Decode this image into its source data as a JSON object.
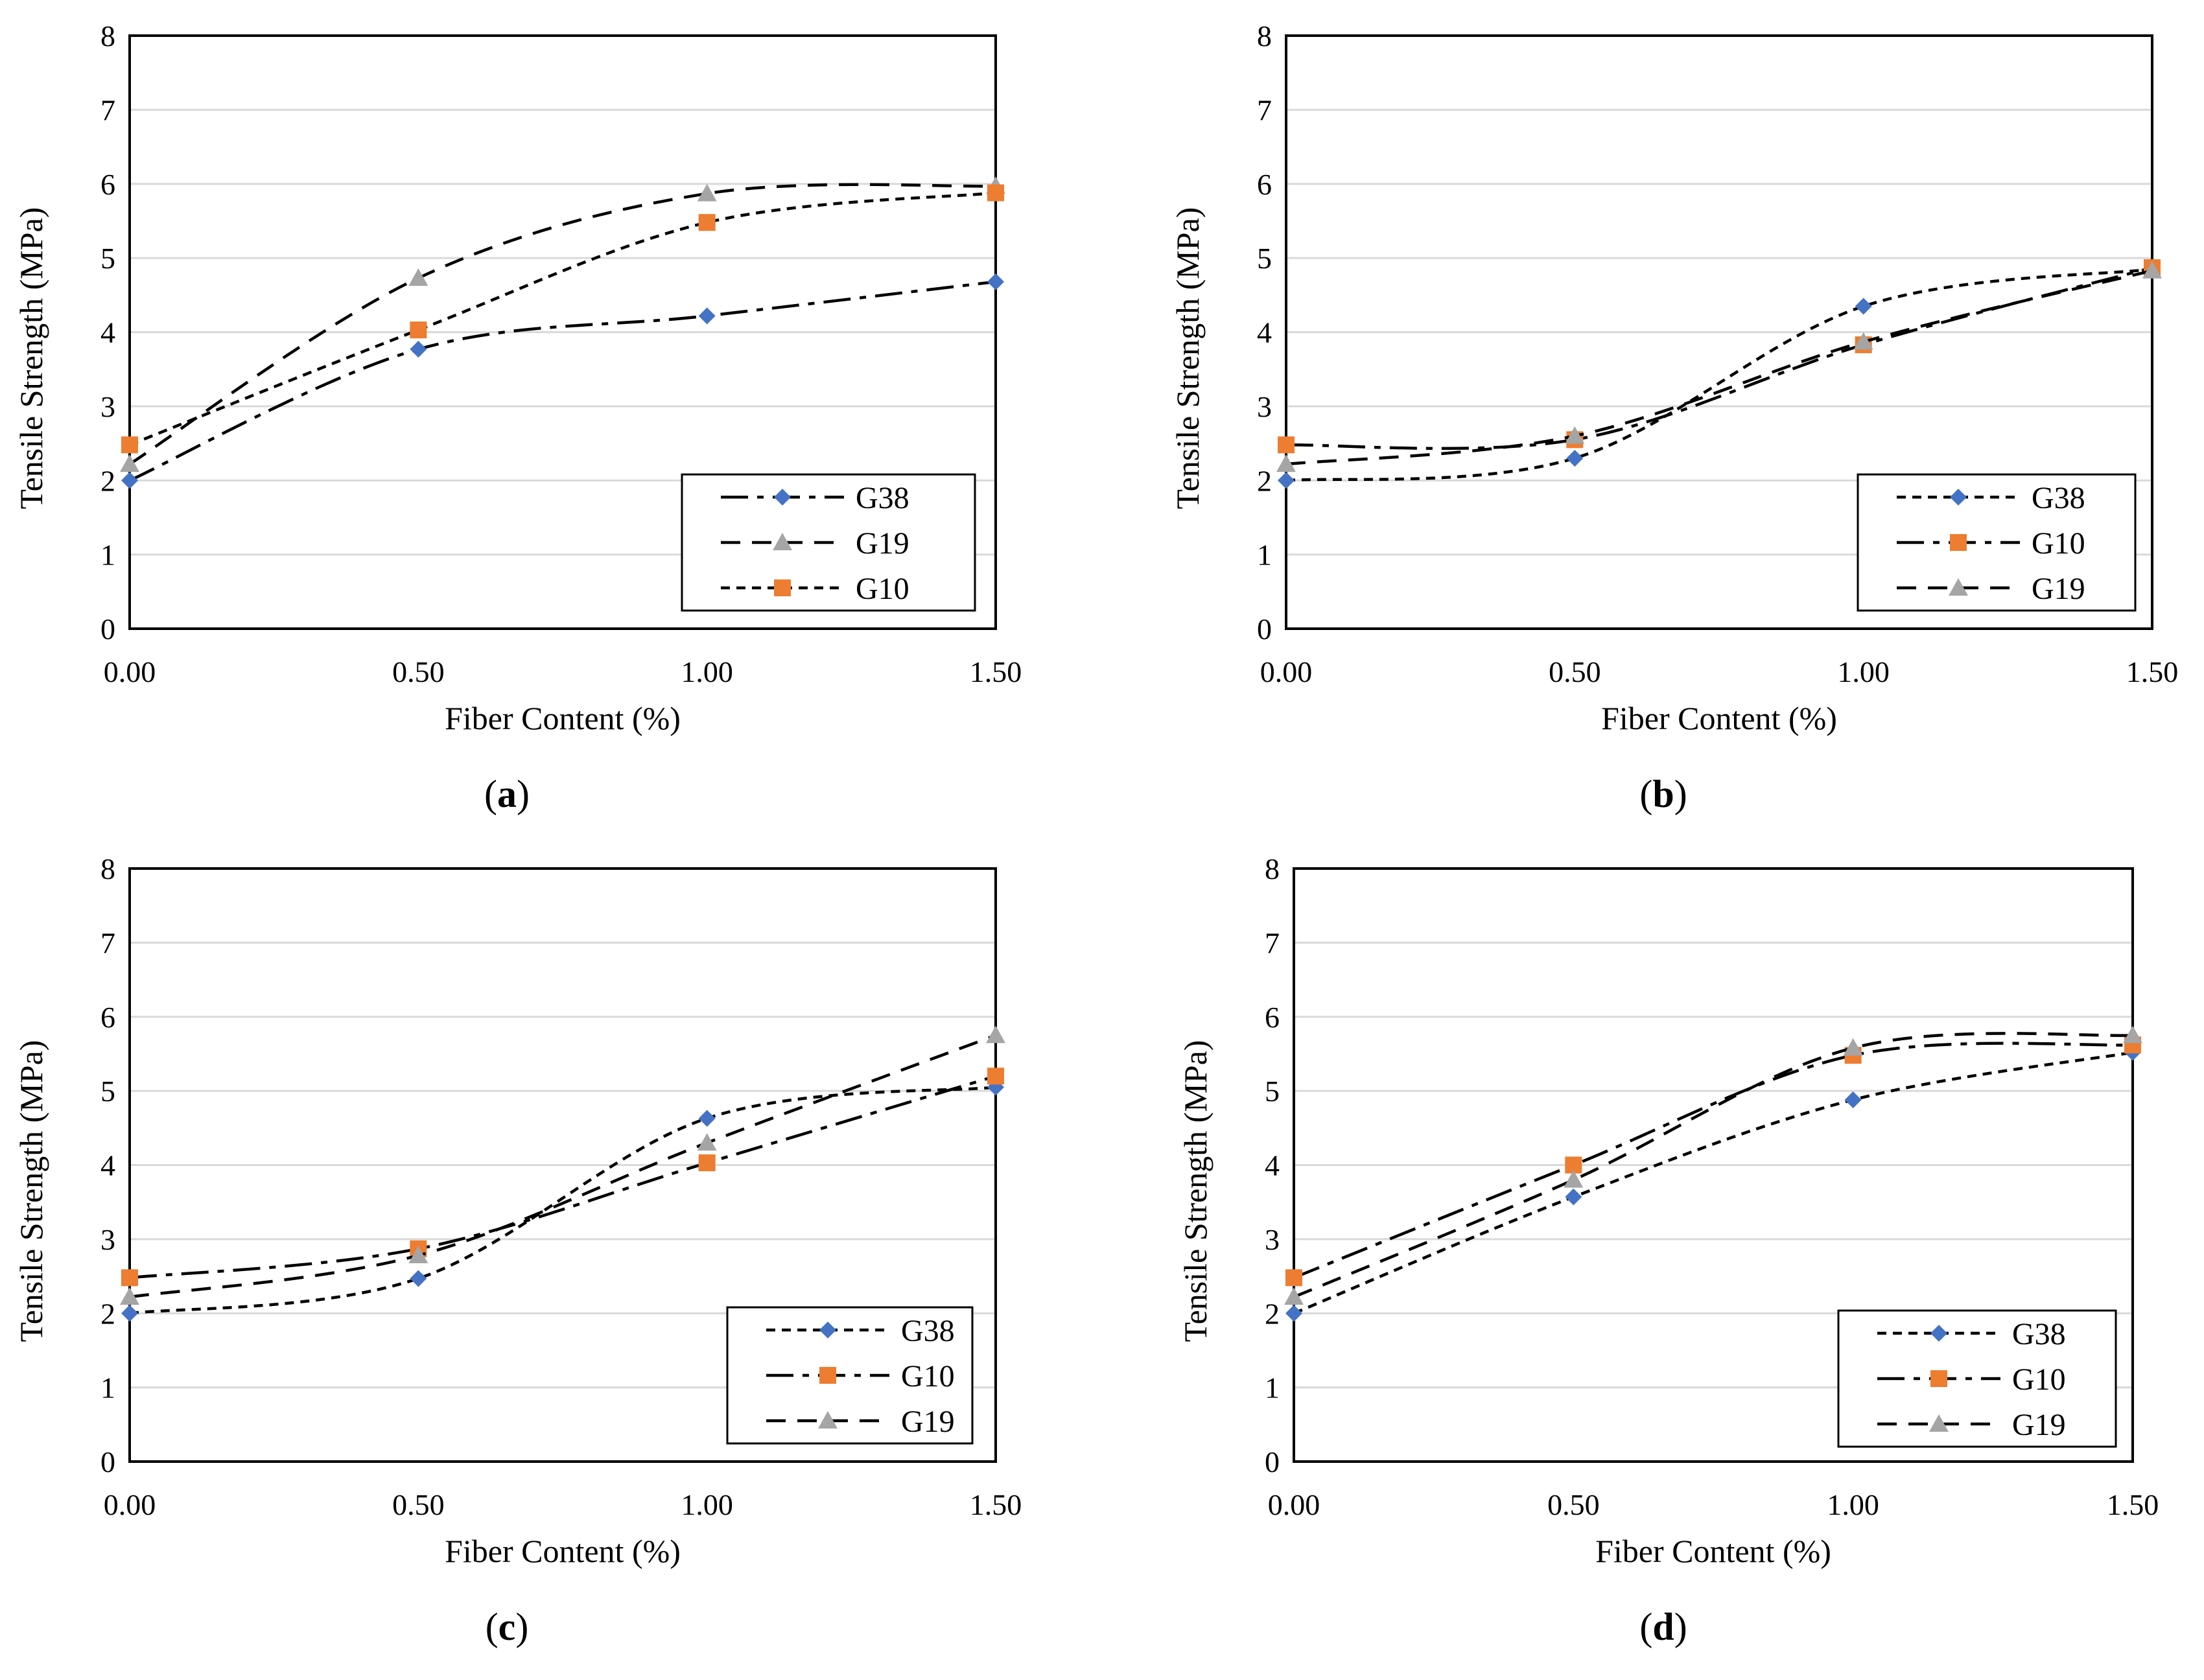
{
  "colors": {
    "G38": "#4472c4",
    "G10": "#ed7d31",
    "G19": "#a5a5a5",
    "gridline": "#d9d9d9",
    "frame": "#000000"
  },
  "chart_data": [
    {
      "type": "line",
      "caption": "a",
      "xlabel": "Fiber Content (%)",
      "ylabel": "Tensile Strength (MPa)",
      "x": [
        0,
        0.5,
        1.0,
        1.5
      ],
      "x_tick_labels": [
        "0.00",
        "0.50",
        "1.00",
        "1.50"
      ],
      "xlim": [
        0,
        1.5
      ],
      "ylim": [
        0,
        8
      ],
      "y_tick_labels": [
        "0",
        "1",
        "2",
        "3",
        "4",
        "5",
        "6",
        "7",
        "8"
      ],
      "grid": "horizontal",
      "legend_position": "bottom-right",
      "series": [
        {
          "name": "G38",
          "values": [
            2.0,
            3.77,
            4.22,
            4.68
          ],
          "marker": "diamond",
          "line": "dash-dot"
        },
        {
          "name": "G19",
          "values": [
            2.22,
            4.73,
            5.87,
            5.97
          ],
          "marker": "triangle",
          "line": "dash"
        },
        {
          "name": "G10",
          "values": [
            2.48,
            4.03,
            5.48,
            5.88
          ],
          "marker": "square",
          "line": "short-dash"
        }
      ]
    },
    {
      "type": "line",
      "caption": "b",
      "xlabel": "Fiber Content (%)",
      "ylabel": "Tensile Strength (MPa)",
      "x": [
        0,
        0.5,
        1.0,
        1.5
      ],
      "x_tick_labels": [
        "0.00",
        "0.50",
        "1.00",
        "1.50"
      ],
      "xlim": [
        0,
        1.5
      ],
      "ylim": [
        0,
        8
      ],
      "y_tick_labels": [
        "0",
        "1",
        "2",
        "3",
        "4",
        "5",
        "6",
        "7",
        "8"
      ],
      "grid": "horizontal",
      "legend_position": "bottom-right",
      "series": [
        {
          "name": "G38",
          "values": [
            2.0,
            2.3,
            4.35,
            4.85
          ],
          "marker": "diamond",
          "line": "short-dash"
        },
        {
          "name": "G10",
          "values": [
            2.48,
            2.55,
            3.83,
            4.87
          ],
          "marker": "square",
          "line": "dash-dot"
        },
        {
          "name": "G19",
          "values": [
            2.22,
            2.6,
            3.87,
            4.83
          ],
          "marker": "triangle",
          "line": "dash"
        }
      ]
    },
    {
      "type": "line",
      "caption": "c",
      "xlabel": "Fiber Content (%)",
      "ylabel": "Tensile Strength (MPa)",
      "x": [
        0,
        0.5,
        1.0,
        1.5
      ],
      "x_tick_labels": [
        "0.00",
        "0.50",
        "1.00",
        "1.50"
      ],
      "xlim": [
        0,
        1.5
      ],
      "ylim": [
        0,
        8
      ],
      "y_tick_labels": [
        "0",
        "1",
        "2",
        "3",
        "4",
        "5",
        "6",
        "7",
        "8"
      ],
      "grid": "horizontal",
      "legend_position": "bottom-right",
      "series": [
        {
          "name": "G38",
          "values": [
            2.0,
            2.47,
            4.63,
            5.05
          ],
          "marker": "diamond",
          "line": "short-dash"
        },
        {
          "name": "G10",
          "values": [
            2.48,
            2.87,
            4.03,
            5.2
          ],
          "marker": "square",
          "line": "dash-dot"
        },
        {
          "name": "G19",
          "values": [
            2.22,
            2.78,
            4.3,
            5.75
          ],
          "marker": "triangle",
          "line": "dash"
        }
      ]
    },
    {
      "type": "line",
      "caption": "d",
      "xlabel": "Fiber Content (%)",
      "ylabel": "Tensile Strength (MPa)",
      "x": [
        0,
        0.5,
        1.0,
        1.5
      ],
      "x_tick_labels": [
        "0.00",
        "0.50",
        "1.00",
        "1.50"
      ],
      "xlim": [
        0,
        1.5
      ],
      "ylim": [
        0,
        8
      ],
      "y_tick_labels": [
        "0",
        "1",
        "2",
        "3",
        "4",
        "5",
        "6",
        "7",
        "8"
      ],
      "grid": "horizontal",
      "legend_position": "bottom-right",
      "series": [
        {
          "name": "G38",
          "values": [
            2.0,
            3.57,
            4.88,
            5.52
          ],
          "marker": "diamond",
          "line": "short-dash"
        },
        {
          "name": "G10",
          "values": [
            2.48,
            4.0,
            5.48,
            5.62
          ],
          "marker": "square",
          "line": "dash-dot"
        },
        {
          "name": "G19",
          "values": [
            2.22,
            3.8,
            5.58,
            5.75
          ],
          "marker": "triangle",
          "line": "dash"
        }
      ]
    }
  ]
}
